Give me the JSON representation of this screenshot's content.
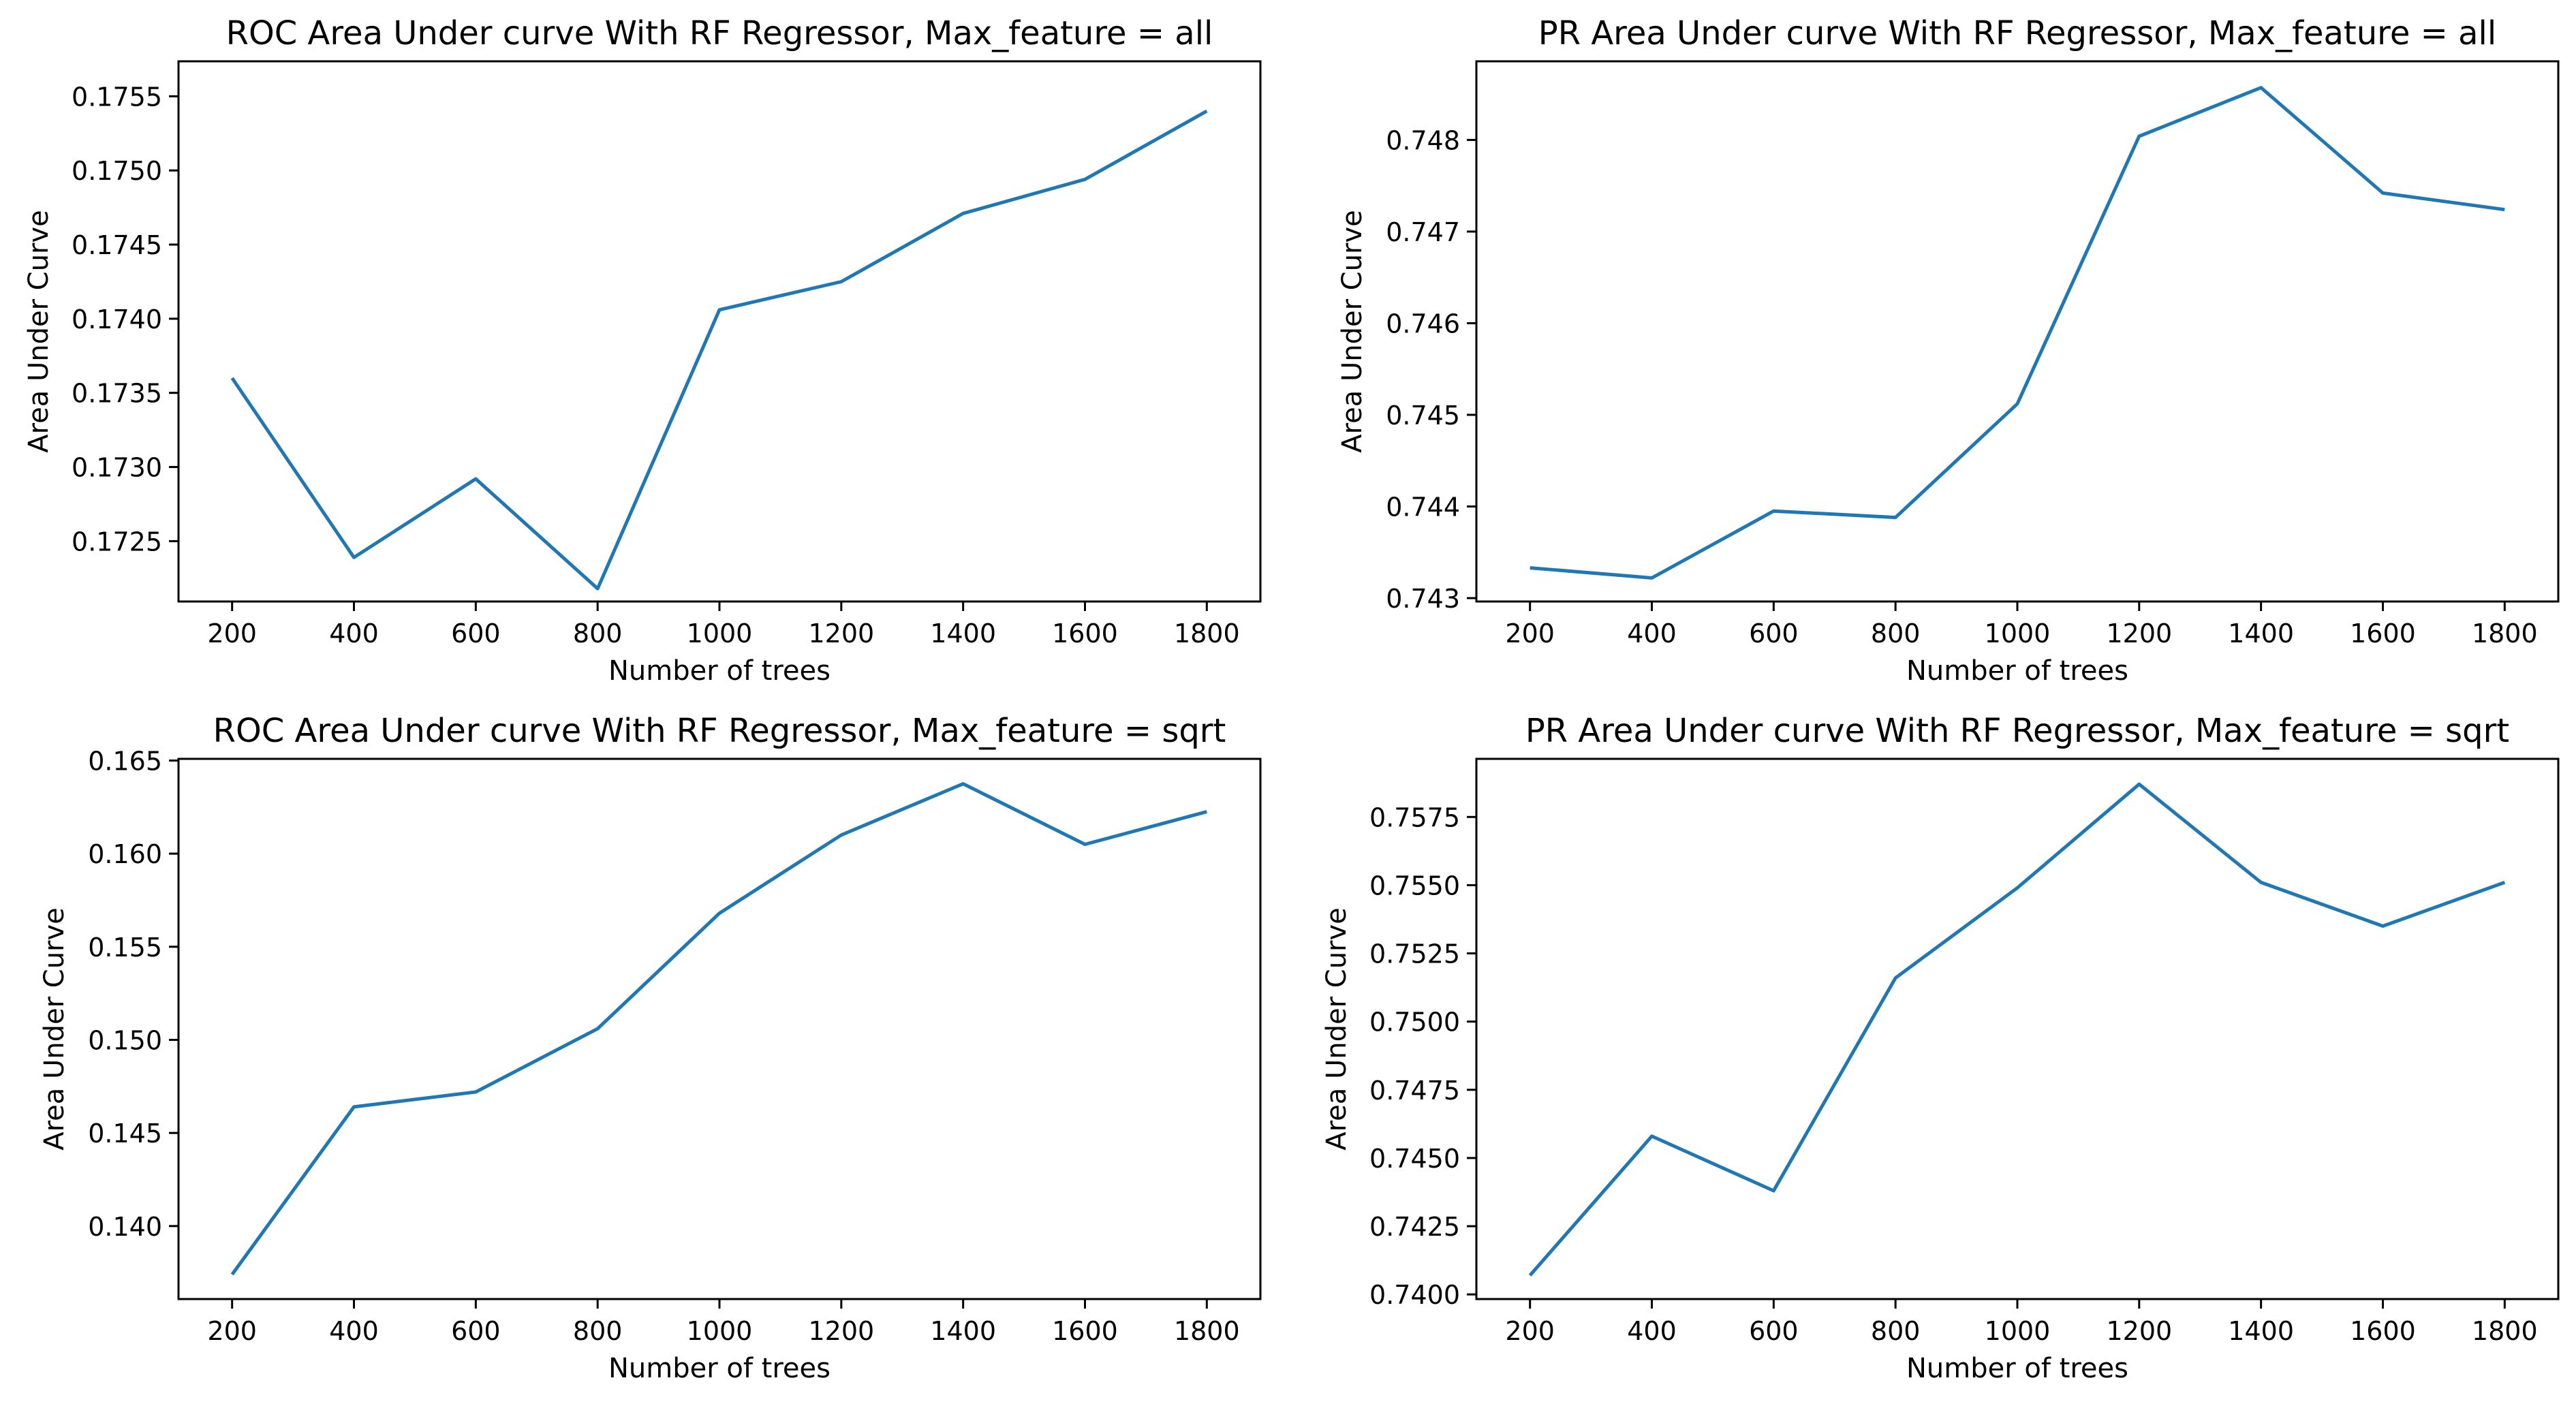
{
  "chart_data": [
    {
      "type": "line",
      "title": "ROC Area Under curve With RF Regressor, Max_feature = all",
      "xlabel": "Number of trees",
      "ylabel": "Area Under Curve",
      "x": [
        200,
        400,
        600,
        800,
        1000,
        1200,
        1400,
        1600,
        1800
      ],
      "xticks": [
        200,
        400,
        600,
        800,
        1000,
        1200,
        1400,
        1600,
        1800
      ],
      "xlim": [
        112,
        1888
      ],
      "yticks": [
        "0.1725",
        "0.1730",
        "0.1735",
        "0.1740",
        "0.1745",
        "0.1750",
        "0.1755"
      ],
      "ylim": [
        0.172093,
        0.175736
      ],
      "grid": false,
      "series": [
        {
          "values": [
            0.1736,
            0.17239,
            0.17292,
            0.17218,
            0.17406,
            0.17425,
            0.17471,
            0.17494,
            0.1754
          ],
          "color": "#1f77b4"
        }
      ]
    },
    {
      "type": "line",
      "title": "PR Area Under curve With RF Regressor, Max_feature = all",
      "xlabel": "Number of trees",
      "ylabel": "Area Under Curve",
      "x": [
        200,
        400,
        600,
        800,
        1000,
        1200,
        1400,
        1600,
        1800
      ],
      "xticks": [
        200,
        400,
        600,
        800,
        1000,
        1200,
        1400,
        1600,
        1800
      ],
      "xlim": [
        112,
        1888
      ],
      "yticks": [
        "0.743",
        "0.744",
        "0.745",
        "0.746",
        "0.747",
        "0.748"
      ],
      "ylim": [
        0.742963,
        0.748858
      ],
      "grid": false,
      "series": [
        {
          "values": [
            0.74333,
            0.74322,
            0.74395,
            0.74388,
            0.74512,
            0.74804,
            0.74857,
            0.74742,
            0.74724
          ],
          "color": "#1f77b4"
        }
      ]
    },
    {
      "type": "line",
      "title": "ROC Area Under curve With RF Regressor, Max_feature = sqrt",
      "xlabel": "Number of trees",
      "ylabel": "Area Under Curve",
      "x": [
        200,
        400,
        600,
        800,
        1000,
        1200,
        1400,
        1600,
        1800
      ],
      "xticks": [
        200,
        400,
        600,
        800,
        1000,
        1200,
        1400,
        1600,
        1800
      ],
      "xlim": [
        112,
        1888
      ],
      "yticks": [
        "0.140",
        "0.145",
        "0.150",
        "0.155",
        "0.160",
        "0.165"
      ],
      "ylim": [
        0.13608,
        0.16509
      ],
      "grid": false,
      "series": [
        {
          "values": [
            0.1374,
            0.1464,
            0.1472,
            0.1506,
            0.1568,
            0.161,
            0.16375,
            0.1605,
            0.16225
          ],
          "color": "#1f77b4"
        }
      ]
    },
    {
      "type": "line",
      "title": "PR Area Under curve With RF Regressor, Max_feature = sqrt",
      "xlabel": "Number of trees",
      "ylabel": "Area Under Curve",
      "x": [
        200,
        400,
        600,
        800,
        1000,
        1200,
        1400,
        1600,
        1800
      ],
      "xticks": [
        200,
        400,
        600,
        800,
        1000,
        1200,
        1400,
        1600,
        1800
      ],
      "xlim": [
        112,
        1888
      ],
      "yticks": [
        "0.7400",
        "0.7425",
        "0.7450",
        "0.7475",
        "0.7500",
        "0.7525",
        "0.7550",
        "0.7575"
      ],
      "ylim": [
        0.73983,
        0.75963
      ],
      "grid": false,
      "series": [
        {
          "values": [
            0.7407,
            0.7458,
            0.7438,
            0.7516,
            0.7549,
            0.7587,
            0.7551,
            0.7535,
            0.7551
          ],
          "color": "#1f77b4"
        }
      ]
    }
  ]
}
